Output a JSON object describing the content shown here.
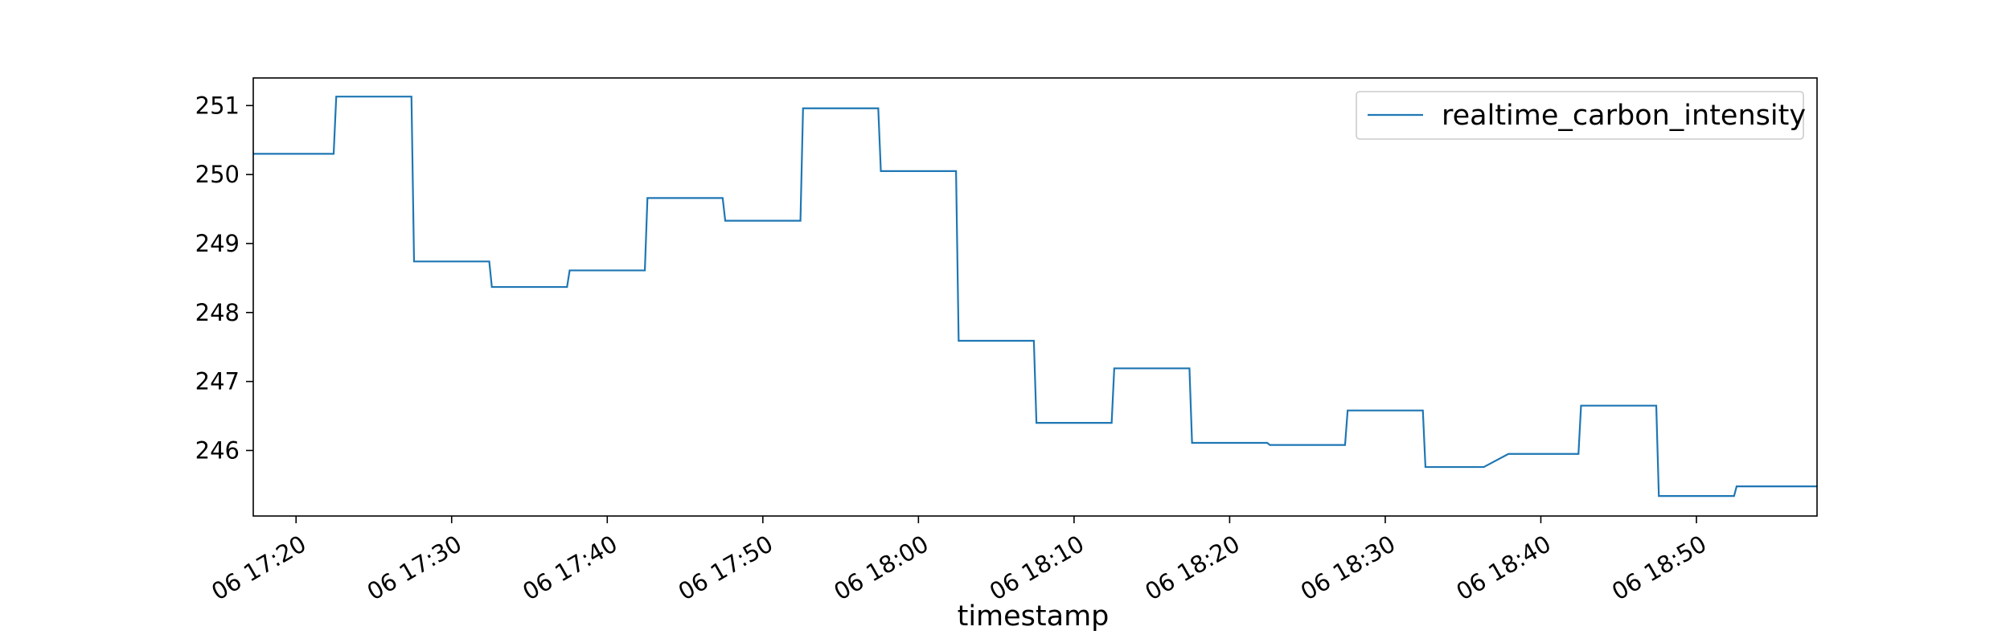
{
  "chart_data": {
    "type": "line",
    "title": "",
    "xlabel": "timestamp",
    "ylabel": "",
    "line_style": "step",
    "color": "#1f77b4",
    "grid": false,
    "legend_position": "top-right",
    "x_range": [
      "06 17:17:15",
      "06 18:57:45"
    ],
    "ylim": [
      245.05,
      251.4
    ],
    "x_ticks": [
      {
        "time": "06 17:20",
        "label": "06 17:20"
      },
      {
        "time": "06 17:30",
        "label": "06 17:30"
      },
      {
        "time": "06 17:40",
        "label": "06 17:40"
      },
      {
        "time": "06 17:50",
        "label": "06 17:50"
      },
      {
        "time": "06 18:00",
        "label": "06 18:00"
      },
      {
        "time": "06 18:10",
        "label": "06 18:10"
      },
      {
        "time": "06 18:20",
        "label": "06 18:20"
      },
      {
        "time": "06 18:30",
        "label": "06 18:30"
      },
      {
        "time": "06 18:40",
        "label": "06 18:40"
      },
      {
        "time": "06 18:50",
        "label": "06 18:50"
      }
    ],
    "y_ticks": [
      246,
      247,
      248,
      249,
      250,
      251
    ],
    "series": [
      {
        "name": "realtime_carbon_intensity",
        "points": [
          {
            "x": "06 17:17:15",
            "y": 250.3
          },
          {
            "x": "06 17:22:25",
            "y": 250.3
          },
          {
            "x": "06 17:22:35",
            "y": 251.13
          },
          {
            "x": "06 17:27:25",
            "y": 251.13
          },
          {
            "x": "06 17:27:35",
            "y": 248.74
          },
          {
            "x": "06 17:32:25",
            "y": 248.74
          },
          {
            "x": "06 17:32:35",
            "y": 248.37
          },
          {
            "x": "06 17:37:25",
            "y": 248.37
          },
          {
            "x": "06 17:37:35",
            "y": 248.61
          },
          {
            "x": "06 17:42:25",
            "y": 248.61
          },
          {
            "x": "06 17:42:35",
            "y": 249.66
          },
          {
            "x": "06 17:47:25",
            "y": 249.66
          },
          {
            "x": "06 17:47:35",
            "y": 249.33
          },
          {
            "x": "06 17:52:25",
            "y": 249.33
          },
          {
            "x": "06 17:52:35",
            "y": 250.96
          },
          {
            "x": "06 17:57:25",
            "y": 250.96
          },
          {
            "x": "06 17:57:35",
            "y": 250.05
          },
          {
            "x": "06 18:02:25",
            "y": 250.05
          },
          {
            "x": "06 18:02:35",
            "y": 247.59
          },
          {
            "x": "06 18:07:25",
            "y": 247.59
          },
          {
            "x": "06 18:07:35",
            "y": 246.4
          },
          {
            "x": "06 18:12:25",
            "y": 246.4
          },
          {
            "x": "06 18:12:35",
            "y": 247.19
          },
          {
            "x": "06 18:17:25",
            "y": 247.19
          },
          {
            "x": "06 18:17:35",
            "y": 246.11
          },
          {
            "x": "06 18:22:25",
            "y": 246.11
          },
          {
            "x": "06 18:22:35",
            "y": 246.08
          },
          {
            "x": "06 18:27:25",
            "y": 246.08
          },
          {
            "x": "06 18:27:35",
            "y": 246.58
          },
          {
            "x": "06 18:32:25",
            "y": 246.58
          },
          {
            "x": "06 18:32:35",
            "y": 245.76
          },
          {
            "x": "06 18:36:20",
            "y": 245.76
          },
          {
            "x": "06 18:37:55",
            "y": 245.95
          },
          {
            "x": "06 18:42:25",
            "y": 245.95
          },
          {
            "x": "06 18:42:35",
            "y": 246.65
          },
          {
            "x": "06 18:47:25",
            "y": 246.65
          },
          {
            "x": "06 18:47:35",
            "y": 245.34
          },
          {
            "x": "06 18:52:25",
            "y": 245.34
          },
          {
            "x": "06 18:52:35",
            "y": 245.48
          },
          {
            "x": "06 18:57:45",
            "y": 245.48
          }
        ]
      }
    ]
  }
}
